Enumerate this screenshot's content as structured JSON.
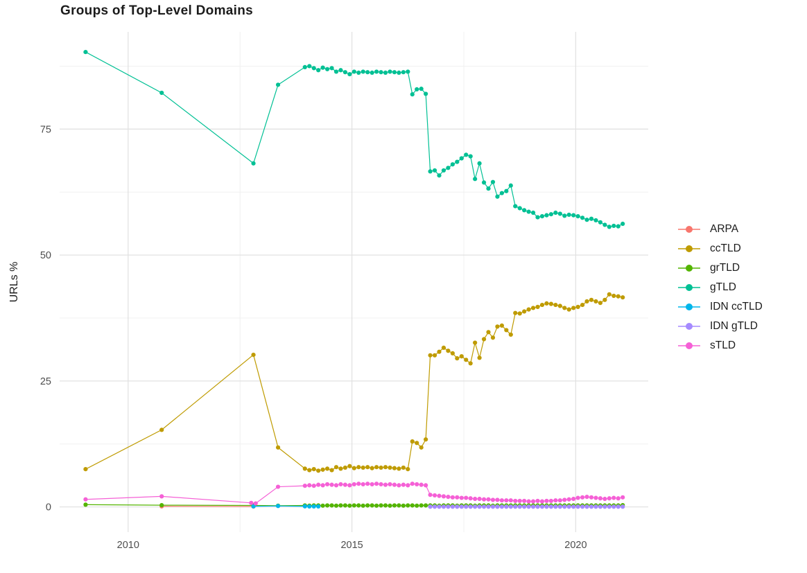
{
  "title": "Groups of Top-Level Domains",
  "y_axis": {
    "label": "URLs %",
    "ticks": [
      "0",
      "25",
      "50",
      "75"
    ],
    "tick_values": [
      0,
      25,
      50,
      75
    ]
  },
  "x_axis": {
    "ticks": [
      "2010",
      "2015",
      "2020"
    ],
    "tick_values": [
      2010,
      2015,
      2020
    ]
  },
  "legend": {
    "position": "right",
    "items": [
      {
        "label": "ARPA",
        "color": "#F8766D"
      },
      {
        "label": "ccTLD",
        "color": "#BF9B00"
      },
      {
        "label": "grTLD",
        "color": "#53B400"
      },
      {
        "label": "gTLD",
        "color": "#00C094"
      },
      {
        "label": "IDN ccTLD",
        "color": "#00B6EB"
      },
      {
        "label": "IDN gTLD",
        "color": "#A58AFF"
      },
      {
        "label": "sTLD",
        "color": "#F560D6"
      }
    ]
  },
  "style": {
    "background": "#FFFFFF",
    "major_gridline_color": "#E2E2E2",
    "minor_gridline_color": "#F0F0F0",
    "tick_text_color": "#4d4d4d",
    "title_color": "#1b1b1b"
  },
  "chart_data": {
    "type": "line",
    "title": "Groups of Top-Level Domains",
    "xlabel": "",
    "ylabel": "URLs %",
    "xlim": [
      2008.47,
      2021.62
    ],
    "ylim": [
      -5,
      94.3
    ],
    "x_major_gridlines": [
      2010,
      2015,
      2020
    ],
    "x_minor_gridlines": [
      2012.5,
      2017.5
    ],
    "y_major_gridlines": [
      0,
      25,
      50,
      75
    ],
    "y_minor_gridlines": [
      12.5,
      37.5,
      62.5,
      87.5
    ],
    "legend_position": "right",
    "series": [
      {
        "name": "ARPA",
        "color": "#F8766D",
        "lead": [
          [
            2010.75,
            0.12
          ],
          [
            2012.8,
            0.08
          ]
        ]
      },
      {
        "name": "ccTLD",
        "color": "#BF9B00",
        "lead": [
          [
            2009.05,
            7.5
          ],
          [
            2010.75,
            15.3
          ],
          [
            2012.8,
            30.2
          ],
          [
            2013.35,
            11.8
          ]
        ],
        "dense": {
          "x0": 2013.95,
          "dx": 0.1,
          "y": [
            7.6,
            7.3,
            7.5,
            7.2,
            7.4,
            7.6,
            7.3,
            7.9,
            7.6,
            7.8,
            8.1,
            7.7,
            7.9,
            7.8,
            7.9,
            7.7,
            7.9,
            7.8,
            7.9,
            7.8,
            7.7,
            7.6,
            7.8,
            7.5,
            13.0,
            12.7,
            11.8,
            13.4,
            30.1,
            30.1,
            30.8,
            31.6,
            31.0,
            30.5,
            29.5,
            29.9,
            29.2,
            28.5,
            32.6,
            29.6,
            33.3,
            34.7,
            33.6,
            35.8,
            36.0,
            35.1,
            34.2,
            38.5,
            38.4,
            38.8,
            39.2,
            39.5,
            39.7,
            40.1,
            40.4,
            40.3,
            40.1,
            39.9,
            39.5,
            39.2,
            39.5,
            39.7,
            40.1,
            40.8,
            41.1,
            40.8,
            40.5,
            41.1,
            42.2,
            41.9,
            41.8,
            41.6
          ]
        }
      },
      {
        "name": "grTLD",
        "color": "#53B400",
        "lead": [
          [
            2009.05,
            0.45
          ],
          [
            2010.75,
            0.35
          ],
          [
            2012.8,
            0.3
          ],
          [
            2013.35,
            0.25
          ]
        ],
        "dense": {
          "x0": 2013.95,
          "dx": 0.1,
          "y": [
            0.3,
            0.25,
            0.3,
            0.3,
            0.25,
            0.3,
            0.3,
            0.25,
            0.3,
            0.3,
            0.25,
            0.3,
            0.3,
            0.25,
            0.3,
            0.3,
            0.25,
            0.3,
            0.3,
            0.25,
            0.3,
            0.3,
            0.25,
            0.3,
            0.3,
            0.25,
            0.3,
            0.3,
            0.3,
            0.3,
            0.25,
            0.3,
            0.3,
            0.3,
            0.25,
            0.3,
            0.3,
            0.3,
            0.25,
            0.3,
            0.3,
            0.3,
            0.25,
            0.3,
            0.3,
            0.3,
            0.3,
            0.3,
            0.3,
            0.3,
            0.3,
            0.3,
            0.3,
            0.3,
            0.3,
            0.3,
            0.3,
            0.3,
            0.3,
            0.3,
            0.3,
            0.3,
            0.3,
            0.3,
            0.3,
            0.3,
            0.3,
            0.3,
            0.3,
            0.3,
            0.3,
            0.35
          ]
        }
      },
      {
        "name": "gTLD",
        "color": "#00C094",
        "lead": [
          [
            2009.05,
            90.3
          ],
          [
            2010.75,
            82.2
          ],
          [
            2012.8,
            68.2
          ],
          [
            2013.35,
            83.8
          ]
        ],
        "dense": {
          "x0": 2013.95,
          "dx": 0.1,
          "y": [
            87.3,
            87.5,
            87.1,
            86.7,
            87.2,
            86.9,
            87.1,
            86.4,
            86.7,
            86.3,
            85.9,
            86.4,
            86.2,
            86.4,
            86.3,
            86.2,
            86.4,
            86.3,
            86.2,
            86.4,
            86.3,
            86.2,
            86.3,
            86.4,
            81.9,
            82.9,
            83.0,
            82.0,
            66.6,
            66.8,
            65.8,
            66.8,
            67.3,
            68.0,
            68.5,
            69.2,
            69.9,
            69.6,
            65.1,
            68.2,
            64.4,
            63.2,
            64.5,
            61.6,
            62.3,
            62.7,
            63.8,
            59.7,
            59.3,
            58.9,
            58.6,
            58.4,
            57.5,
            57.7,
            57.9,
            58.1,
            58.4,
            58.2,
            57.8,
            58.0,
            57.9,
            57.7,
            57.4,
            57.0,
            57.2,
            56.9,
            56.5,
            56.0,
            55.6,
            55.8,
            55.7,
            56.2
          ]
        }
      },
      {
        "name": "IDN ccTLD",
        "color": "#00B6EB",
        "lead": [
          [
            2012.8,
            0.12
          ],
          [
            2013.35,
            0.18
          ],
          [
            2013.95,
            0.12
          ],
          [
            2014.05,
            0.1
          ],
          [
            2014.15,
            0.1
          ],
          [
            2014.25,
            0.1
          ]
        ]
      },
      {
        "name": "IDN gTLD",
        "color": "#A58AFF",
        "dense": {
          "x0": 2016.75,
          "dx": 0.1,
          "y": [
            0.05,
            0.05,
            0.05,
            0.05,
            0.05,
            0.05,
            0.05,
            0.05,
            0.05,
            0.05,
            0.05,
            0.05,
            0.05,
            0.05,
            0.05,
            0.05,
            0.05,
            0.05,
            0.05,
            0.05,
            0.05,
            0.05,
            0.05,
            0.05,
            0.05,
            0.05,
            0.05,
            0.05,
            0.05,
            0.05,
            0.05,
            0.05,
            0.05,
            0.05,
            0.05,
            0.05,
            0.05,
            0.05,
            0.05,
            0.05,
            0.05,
            0.05,
            0.05,
            0.05
          ]
        }
      },
      {
        "name": "sTLD",
        "color": "#F560D6",
        "lead": [
          [
            2009.05,
            1.5
          ],
          [
            2010.75,
            2.1
          ],
          [
            2012.75,
            0.8
          ],
          [
            2012.85,
            0.7
          ],
          [
            2013.35,
            4.0
          ]
        ],
        "dense": {
          "x0": 2013.95,
          "dx": 0.1,
          "y": [
            4.2,
            4.3,
            4.2,
            4.4,
            4.3,
            4.5,
            4.4,
            4.3,
            4.5,
            4.4,
            4.3,
            4.5,
            4.6,
            4.5,
            4.6,
            4.5,
            4.6,
            4.5,
            4.4,
            4.5,
            4.4,
            4.3,
            4.4,
            4.3,
            4.6,
            4.5,
            4.4,
            4.3,
            2.4,
            2.3,
            2.2,
            2.1,
            2.0,
            1.9,
            1.9,
            1.8,
            1.8,
            1.7,
            1.6,
            1.6,
            1.5,
            1.5,
            1.4,
            1.4,
            1.3,
            1.3,
            1.3,
            1.2,
            1.2,
            1.2,
            1.1,
            1.1,
            1.2,
            1.1,
            1.2,
            1.2,
            1.3,
            1.3,
            1.4,
            1.5,
            1.6,
            1.8,
            1.9,
            2.0,
            1.9,
            1.8,
            1.7,
            1.6,
            1.7,
            1.8,
            1.7,
            1.9
          ]
        }
      }
    ]
  }
}
